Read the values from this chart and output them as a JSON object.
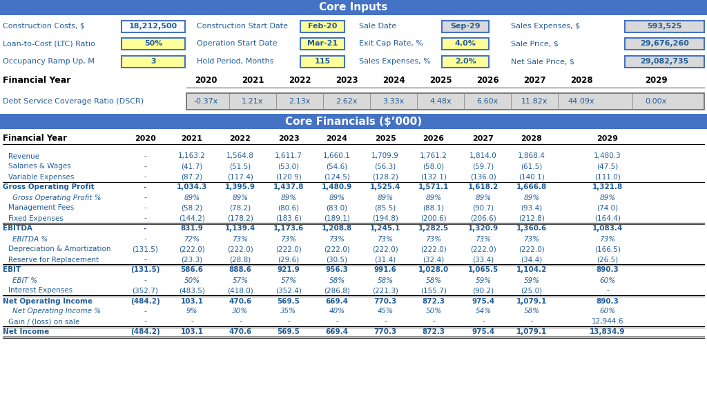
{
  "title_inputs": "Core Inputs",
  "title_financials": "Core Financials ($’000)",
  "header_bg": "#4472C4",
  "header_text": "#FFFFFF",
  "label_color": "#1F5C99",
  "yellow_bg": "#FFFF99",
  "gray_bg": "#D9D9D9",
  "white_bg": "#FFFFFF",
  "col1_labels": [
    "Construction Costs, $",
    "Loan-to-Cost (LTC) Ratio",
    "Occupancy Ramp Up, M"
  ],
  "col1_vals": [
    "18,212,500",
    "50%",
    "3"
  ],
  "col1_bgs": [
    "#FFFFFF",
    "#FFFF99",
    "#FFFF99"
  ],
  "col2_labels": [
    "Construction Start Date",
    "Operation Start Date",
    "Hold Period, Months"
  ],
  "col2_vals": [
    "Feb-20",
    "Mar-21",
    "115"
  ],
  "col3_labels": [
    "Sale Date",
    "Exit Cap Rate, %",
    "Sales Expenses, %"
  ],
  "col3_vals": [
    "Sep-29",
    "4.0%",
    "2.0%"
  ],
  "col3_bgs": [
    "#D9D9D9",
    "#FFFF99",
    "#FFFF99"
  ],
  "col4_labels": [
    "Sales Expenses, $",
    "Sale Price, $",
    "Net Sale Price, $"
  ],
  "col4_vals": [
    "593,525",
    "29,676,260",
    "29,082,735"
  ],
  "years": [
    "2020",
    "2021",
    "2022",
    "2023",
    "2024",
    "2025",
    "2026",
    "2027",
    "2028",
    "2029"
  ],
  "dscr": [
    "-0.37x",
    "1.21x",
    "2.13x",
    "2.62x",
    "3.33x",
    "4.48x",
    "6.60x",
    "11.82x",
    "44.09x",
    "0.00x"
  ],
  "fin_rows": [
    {
      "label": "Revenue",
      "bold": false,
      "italic": false,
      "values": [
        "-",
        "1,163.2",
        "1,564.8",
        "1,611.7",
        "1,660.1",
        "1,709.9",
        "1,761.2",
        "1,814.0",
        "1,868.4",
        "1,480.3"
      ],
      "line_above": false,
      "line_above_double": false
    },
    {
      "label": "Salaries & Wages",
      "bold": false,
      "italic": false,
      "values": [
        "-",
        "(41.7)",
        "(51.5)",
        "(53.0)",
        "(54.6)",
        "(56.3)",
        "(58.0)",
        "(59.7)",
        "(61.5)",
        "(47.5)"
      ],
      "line_above": false,
      "line_above_double": false
    },
    {
      "label": "Variable Expenses",
      "bold": false,
      "italic": false,
      "values": [
        "-",
        "(87.2)",
        "(117.4)",
        "(120.9)",
        "(124.5)",
        "(128.2)",
        "(132.1)",
        "(136.0)",
        "(140.1)",
        "(111.0)"
      ],
      "line_above": false,
      "line_above_double": false
    },
    {
      "label": "Gross Operating Profit",
      "bold": true,
      "italic": false,
      "values": [
        "-",
        "1,034.3",
        "1,395.9",
        "1,437.8",
        "1,480.9",
        "1,525.4",
        "1,571.1",
        "1,618.2",
        "1,666.8",
        "1,321.8"
      ],
      "line_above": true,
      "line_above_double": false
    },
    {
      "label": "Gross Operating Profit %",
      "bold": false,
      "italic": true,
      "values": [
        "-",
        "89%",
        "89%",
        "89%",
        "89%",
        "89%",
        "89%",
        "89%",
        "89%",
        "89%"
      ],
      "line_above": false,
      "line_above_double": false
    },
    {
      "label": "Management Fees",
      "bold": false,
      "italic": false,
      "values": [
        "-",
        "(58.2)",
        "(78.2)",
        "(80.6)",
        "(83.0)",
        "(85.5)",
        "(88.1)",
        "(90.7)",
        "(93.4)",
        "(74.0)"
      ],
      "line_above": false,
      "line_above_double": false
    },
    {
      "label": "Fixed Expenses",
      "bold": false,
      "italic": false,
      "values": [
        "-",
        "(144.2)",
        "(178.2)",
        "(183.6)",
        "(189.1)",
        "(194.8)",
        "(200.6)",
        "(206.6)",
        "(212.8)",
        "(164.4)"
      ],
      "line_above": false,
      "line_above_double": false
    },
    {
      "label": "EBITDA",
      "bold": true,
      "italic": false,
      "values": [
        "-",
        "831.9",
        "1,139.4",
        "1,173.6",
        "1,208.8",
        "1,245.1",
        "1,282.5",
        "1,320.9",
        "1,360.6",
        "1,083.4"
      ],
      "line_above": true,
      "line_above_double": true
    },
    {
      "label": "EBITDA %",
      "bold": false,
      "italic": true,
      "values": [
        "-",
        "72%",
        "73%",
        "73%",
        "73%",
        "73%",
        "73%",
        "73%",
        "73%",
        "73%"
      ],
      "line_above": false,
      "line_above_double": false
    },
    {
      "label": "Depreciation & Amortization",
      "bold": false,
      "italic": false,
      "values": [
        "(131.5)",
        "(222.0)",
        "(222.0)",
        "(222.0)",
        "(222.0)",
        "(222.0)",
        "(222.0)",
        "(222.0)",
        "(222.0)",
        "(166.5)"
      ],
      "line_above": false,
      "line_above_double": false
    },
    {
      "label": "Reserve for Replacement",
      "bold": false,
      "italic": false,
      "values": [
        "-",
        "(23.3)",
        "(28.8)",
        "(29.6)",
        "(30.5)",
        "(31.4)",
        "(32.4)",
        "(33.4)",
        "(34.4)",
        "(26.5)"
      ],
      "line_above": false,
      "line_above_double": false
    },
    {
      "label": "EBIT",
      "bold": true,
      "italic": false,
      "values": [
        "(131.5)",
        "586.6",
        "888.6",
        "921.9",
        "956.3",
        "991.6",
        "1,028.0",
        "1,065.5",
        "1,104.2",
        "890.3"
      ],
      "line_above": true,
      "line_above_double": true
    },
    {
      "label": "EBIT %",
      "bold": false,
      "italic": true,
      "values": [
        "-",
        "50%",
        "57%",
        "57%",
        "58%",
        "58%",
        "58%",
        "59%",
        "59%",
        "60%"
      ],
      "line_above": false,
      "line_above_double": false
    },
    {
      "label": "Interest Expenses",
      "bold": false,
      "italic": false,
      "values": [
        "(352.7)",
        "(483.5)",
        "(418.0)",
        "(352.4)",
        "(286.8)",
        "(221.3)",
        "(155.7)",
        "(90.2)",
        "(25.0)",
        "-"
      ],
      "line_above": false,
      "line_above_double": false
    },
    {
      "label": "Net Operating Income",
      "bold": true,
      "italic": false,
      "values": [
        "(484.2)",
        "103.1",
        "470.6",
        "569.5",
        "669.4",
        "770.3",
        "872.3",
        "975.4",
        "1,079.1",
        "890.3"
      ],
      "line_above": true,
      "line_above_double": true
    },
    {
      "label": "Net Operating Income %",
      "bold": false,
      "italic": true,
      "values": [
        "-",
        "9%",
        "30%",
        "35%",
        "40%",
        "45%",
        "50%",
        "54%",
        "58%",
        "60%"
      ],
      "line_above": false,
      "line_above_double": false
    },
    {
      "label": "Gain / (loss) on sale",
      "bold": false,
      "italic": false,
      "values": [
        "-",
        "-",
        "-",
        "-",
        "-",
        "-",
        "-",
        "-",
        "-",
        "12,944.6"
      ],
      "line_above": false,
      "line_above_double": false
    },
    {
      "label": "Net Income",
      "bold": true,
      "italic": false,
      "values": [
        "(484.2)",
        "103.1",
        "470.6",
        "569.5",
        "669.4",
        "770.3",
        "872.3",
        "975.4",
        "1,079.1",
        "13,834.9"
      ],
      "line_above": true,
      "line_above_double": true
    }
  ]
}
